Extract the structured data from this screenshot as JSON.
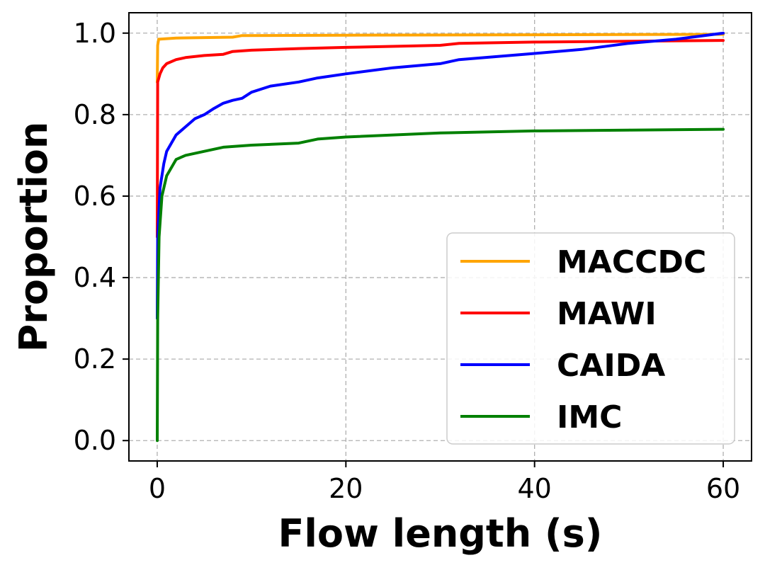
{
  "chart_data": {
    "type": "line",
    "title": "",
    "xlabel": "Flow length (s)",
    "ylabel": "Proportion",
    "xlim": [
      -3,
      63
    ],
    "ylim": [
      -0.05,
      1.05
    ],
    "xticks": [
      0,
      20,
      40,
      60
    ],
    "xtick_labels": [
      "0",
      "20",
      "40",
      "60"
    ],
    "yticks": [
      0.0,
      0.2,
      0.4,
      0.6,
      0.8,
      1.0
    ],
    "ytick_labels": [
      "0.0",
      "0.2",
      "0.4",
      "0.6",
      "0.8",
      "1.0"
    ],
    "grid": true,
    "legend_position": "lower-right",
    "series": [
      {
        "name": "MACCDC",
        "color": "#FFA500",
        "points": [
          [
            0,
            0.88
          ],
          [
            0.05,
            0.97
          ],
          [
            0.15,
            0.985
          ],
          [
            2,
            0.988
          ],
          [
            8,
            0.99
          ],
          [
            9,
            0.994
          ],
          [
            20,
            0.995
          ],
          [
            40,
            0.996
          ],
          [
            60,
            0.997
          ]
        ]
      },
      {
        "name": "MAWI",
        "color": "#FF0000",
        "points": [
          [
            0,
            0.5
          ],
          [
            0.05,
            0.88
          ],
          [
            0.3,
            0.9
          ],
          [
            0.6,
            0.915
          ],
          [
            1,
            0.925
          ],
          [
            2,
            0.935
          ],
          [
            3,
            0.94
          ],
          [
            5,
            0.945
          ],
          [
            7,
            0.948
          ],
          [
            8,
            0.955
          ],
          [
            10,
            0.958
          ],
          [
            15,
            0.962
          ],
          [
            20,
            0.965
          ],
          [
            30,
            0.97
          ],
          [
            32,
            0.975
          ],
          [
            40,
            0.978
          ],
          [
            50,
            0.98
          ],
          [
            60,
            0.982
          ]
        ]
      },
      {
        "name": "CAIDA",
        "color": "#0000FF",
        "points": [
          [
            0,
            0.3
          ],
          [
            0.05,
            0.5
          ],
          [
            0.3,
            0.62
          ],
          [
            0.7,
            0.68
          ],
          [
            1,
            0.71
          ],
          [
            2,
            0.75
          ],
          [
            3,
            0.77
          ],
          [
            4,
            0.79
          ],
          [
            5,
            0.8
          ],
          [
            6,
            0.815
          ],
          [
            7,
            0.828
          ],
          [
            8,
            0.835
          ],
          [
            9,
            0.84
          ],
          [
            10,
            0.855
          ],
          [
            12,
            0.87
          ],
          [
            15,
            0.88
          ],
          [
            17,
            0.89
          ],
          [
            20,
            0.9
          ],
          [
            25,
            0.915
          ],
          [
            30,
            0.925
          ],
          [
            32,
            0.935
          ],
          [
            40,
            0.95
          ],
          [
            45,
            0.96
          ],
          [
            50,
            0.975
          ],
          [
            55,
            0.985
          ],
          [
            60,
            1.0
          ]
        ]
      },
      {
        "name": "IMC",
        "color": "#008000",
        "points": [
          [
            0,
            0.0
          ],
          [
            0.05,
            0.3
          ],
          [
            0.2,
            0.5
          ],
          [
            0.5,
            0.6
          ],
          [
            1,
            0.65
          ],
          [
            2,
            0.69
          ],
          [
            3,
            0.7
          ],
          [
            5,
            0.71
          ],
          [
            7,
            0.72
          ],
          [
            10,
            0.725
          ],
          [
            15,
            0.73
          ],
          [
            17,
            0.74
          ],
          [
            20,
            0.745
          ],
          [
            30,
            0.755
          ],
          [
            40,
            0.76
          ],
          [
            50,
            0.762
          ],
          [
            60,
            0.764
          ]
        ]
      }
    ]
  }
}
